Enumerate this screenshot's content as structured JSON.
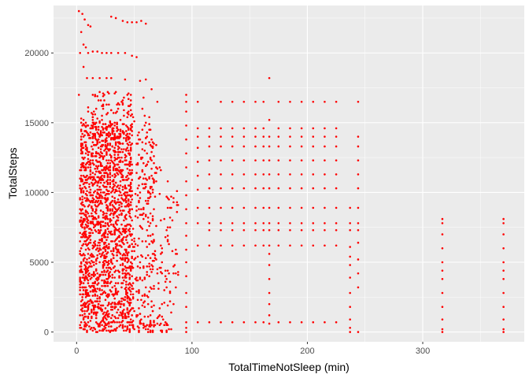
{
  "chart_data": {
    "type": "scatter",
    "xlabel": "TotalTimeNotSleep (min)",
    "ylabel": "TotalSteps",
    "xlim": [
      -20,
      388
    ],
    "ylim": [
      -700,
      23400
    ],
    "x_ticks": [
      {
        "value": 0,
        "label": "0"
      },
      {
        "value": 100,
        "label": "100"
      },
      {
        "value": 200,
        "label": "200"
      },
      {
        "value": 300,
        "label": "300"
      }
    ],
    "y_ticks": [
      {
        "value": 0,
        "label": "0"
      },
      {
        "value": 5000,
        "label": "5000"
      },
      {
        "value": 10000,
        "label": "10000"
      },
      {
        "value": 15000,
        "label": "15000"
      },
      {
        "value": 20000,
        "label": "20000"
      }
    ],
    "grid": true,
    "point_color": "#ff0000",
    "panel_color": "#ebebeb",
    "grid_color": "#ffffff",
    "columns": [
      {
        "x": 95,
        "y": [
          0,
          300,
          700,
          1800,
          2800,
          4000,
          5000,
          5900,
          6900,
          7800,
          8800,
          9800,
          10800,
          11800,
          12800,
          13800,
          14800,
          15800,
          16500,
          17000
        ]
      },
      {
        "x": 105,
        "y": [
          700,
          6200,
          7800,
          8900,
          10200,
          11200,
          12200,
          13200,
          14000,
          14600,
          16500
        ]
      },
      {
        "x": 115,
        "y": [
          700,
          6200,
          7300,
          7800,
          8900,
          10300,
          11300,
          12300,
          13300,
          14000,
          14600
        ]
      },
      {
        "x": 125,
        "y": [
          700,
          6200,
          7300,
          7800,
          8900,
          10300,
          11300,
          12300,
          13300,
          14000,
          14600,
          16500
        ]
      },
      {
        "x": 135,
        "y": [
          700,
          6200,
          7300,
          7800,
          8900,
          10300,
          11300,
          12300,
          13300,
          14000,
          14600,
          16500
        ]
      },
      {
        "x": 145,
        "y": [
          700,
          6200,
          7300,
          7800,
          8900,
          10300,
          11300,
          12300,
          13300,
          14000,
          14600,
          16500
        ]
      },
      {
        "x": 155,
        "y": [
          700,
          6200,
          7300,
          7800,
          8900,
          10300,
          11300,
          12300,
          13300,
          14000,
          14600,
          16500
        ]
      },
      {
        "x": 162,
        "y": [
          700,
          6200,
          7300,
          7800,
          8900,
          10300,
          11300,
          12300,
          13300,
          14000,
          14600,
          16500
        ]
      },
      {
        "x": 167,
        "y": [
          600,
          1200,
          2000,
          2800,
          3800,
          4800,
          5600,
          6200,
          7300,
          7800,
          8900,
          10300,
          11300,
          12300,
          13300,
          14000,
          15200,
          18200
        ]
      },
      {
        "x": 175,
        "y": [
          700,
          6200,
          7300,
          7800,
          8900,
          10300,
          11300,
          12300,
          13300,
          14000,
          14600,
          16500
        ]
      },
      {
        "x": 185,
        "y": [
          700,
          6200,
          7300,
          7800,
          8900,
          10300,
          11300,
          12300,
          13300,
          14000,
          14600,
          16500
        ]
      },
      {
        "x": 195,
        "y": [
          700,
          6200,
          7300,
          7800,
          8900,
          10300,
          11300,
          12300,
          13300,
          14000,
          14600,
          16500
        ]
      },
      {
        "x": 205,
        "y": [
          700,
          6200,
          7300,
          7800,
          8900,
          10300,
          11300,
          12300,
          13300,
          14000,
          14600,
          16500
        ]
      },
      {
        "x": 215,
        "y": [
          700,
          6200,
          7300,
          7800,
          8900,
          10300,
          11300,
          12300,
          13300,
          14000,
          14600,
          16500
        ]
      },
      {
        "x": 225,
        "y": [
          700,
          6200,
          7300,
          7800,
          8900,
          10300,
          11300,
          12300,
          13300,
          14000,
          14600,
          16500
        ]
      },
      {
        "x": 237,
        "y": [
          0,
          300,
          900,
          1800,
          2800,
          3900,
          4800,
          5400,
          6100,
          7300,
          7800,
          8900
        ]
      },
      {
        "x": 244,
        "y": [
          0,
          3200,
          4200,
          5200,
          6400,
          7300,
          7800,
          8900,
          10300,
          11300,
          12300,
          13300,
          14000,
          16500
        ]
      },
      {
        "x": 317,
        "y": [
          0,
          200,
          900,
          1800,
          2800,
          3800,
          4400,
          5000,
          6000,
          7000,
          7800,
          8100
        ]
      },
      {
        "x": 370,
        "y": [
          0,
          200,
          900,
          1800,
          2800,
          3800,
          4400,
          5000,
          6000,
          7000,
          7800,
          8100
        ]
      }
    ]
  }
}
